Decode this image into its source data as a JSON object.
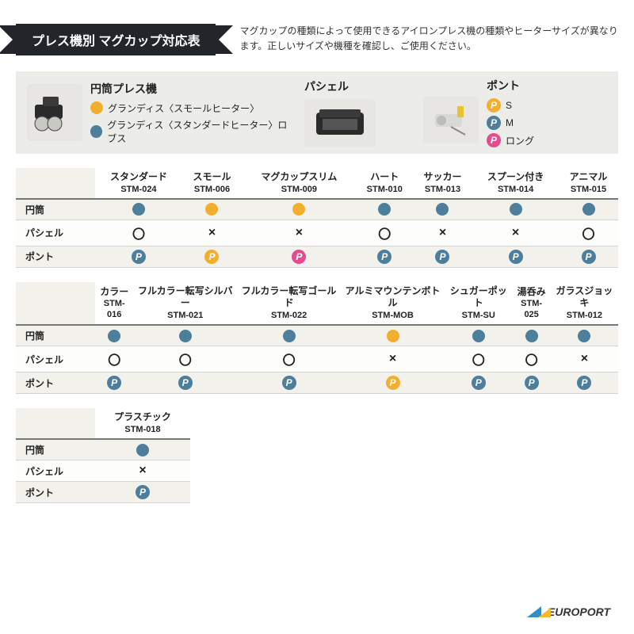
{
  "colors": {
    "blue": "#4d7e9c",
    "orange": "#f3ae2e",
    "pink": "#e84a8f",
    "dark": "#222529",
    "bg_gray": "#ecece9",
    "row_alt": "#f2f1ec",
    "grid": "#d4d3cf"
  },
  "header": {
    "title": "プレス機別 マグカップ対応表",
    "desc": "マグカップの種類によって使用できるアイロンプレス機の種類やヒーターサイズが異なります。正しいサイズや機種を確認し、ご使用ください。"
  },
  "legend": {
    "col1": {
      "title": "円筒プレス機",
      "items": [
        {
          "color": "#f3ae2e",
          "label": "グランディス〈スモールヒーター〉"
        },
        {
          "color": "#4d7e9c",
          "label": "グランディス〈スタンダードヒーター〉ロブス"
        }
      ]
    },
    "col2": {
      "title": "パシェル"
    },
    "col3": {
      "title": "ポント",
      "items": [
        {
          "color": "#f3ae2e",
          "label": "S"
        },
        {
          "color": "#4d7e9c",
          "label": "M"
        },
        {
          "color": "#e84a8f",
          "label": "ロング"
        }
      ]
    }
  },
  "rowLabels": [
    "円筒",
    "パシェル",
    "ポント"
  ],
  "symbols": {
    "ok": "〇",
    "ng": "×",
    "p": "P"
  },
  "tables": [
    {
      "full": true,
      "cols": [
        {
          "name": "スタンダード",
          "code": "STM-024"
        },
        {
          "name": "スモール",
          "code": "STM-006"
        },
        {
          "name": "マグカップスリム",
          "code": "STM-009"
        },
        {
          "name": "ハート",
          "code": "STM-010"
        },
        {
          "name": "サッカー",
          "code": "STM-013"
        },
        {
          "name": "スプーン付き",
          "code": "STM-014"
        },
        {
          "name": "アニマル",
          "code": "STM-015"
        }
      ],
      "rows": [
        [
          {
            "t": "dot",
            "c": "#4d7e9c"
          },
          {
            "t": "dot",
            "c": "#f3ae2e"
          },
          {
            "t": "dot",
            "c": "#f3ae2e"
          },
          {
            "t": "dot",
            "c": "#4d7e9c"
          },
          {
            "t": "dot",
            "c": "#4d7e9c"
          },
          {
            "t": "dot",
            "c": "#4d7e9c"
          },
          {
            "t": "dot",
            "c": "#4d7e9c"
          }
        ],
        [
          {
            "t": "ok"
          },
          {
            "t": "ng"
          },
          {
            "t": "ng"
          },
          {
            "t": "ok"
          },
          {
            "t": "ng"
          },
          {
            "t": "ng"
          },
          {
            "t": "ok"
          }
        ],
        [
          {
            "t": "p",
            "c": "#4d7e9c"
          },
          {
            "t": "p",
            "c": "#f3ae2e"
          },
          {
            "t": "p",
            "c": "#e84a8f"
          },
          {
            "t": "p",
            "c": "#4d7e9c"
          },
          {
            "t": "p",
            "c": "#4d7e9c"
          },
          {
            "t": "p",
            "c": "#4d7e9c"
          },
          {
            "t": "p",
            "c": "#4d7e9c"
          }
        ]
      ]
    },
    {
      "full": true,
      "cols": [
        {
          "name": "カラー",
          "code": "STM-016"
        },
        {
          "name": "フルカラー転写シルバー",
          "code": "STM-021"
        },
        {
          "name": "フルカラー転写ゴールド",
          "code": "STM-022"
        },
        {
          "name": "アルミマウンテンボトル",
          "code": "STM-MOB"
        },
        {
          "name": "シュガーポット",
          "code": "STM-SU"
        },
        {
          "name": "湯呑み",
          "code": "STM-025"
        },
        {
          "name": "ガラスジョッキ",
          "code": "STM-012"
        }
      ],
      "rows": [
        [
          {
            "t": "dot",
            "c": "#4d7e9c"
          },
          {
            "t": "dot",
            "c": "#4d7e9c"
          },
          {
            "t": "dot",
            "c": "#4d7e9c"
          },
          {
            "t": "dot",
            "c": "#f3ae2e"
          },
          {
            "t": "dot",
            "c": "#4d7e9c"
          },
          {
            "t": "dot",
            "c": "#4d7e9c"
          },
          {
            "t": "dot",
            "c": "#4d7e9c"
          }
        ],
        [
          {
            "t": "ok"
          },
          {
            "t": "ok"
          },
          {
            "t": "ok"
          },
          {
            "t": "ng"
          },
          {
            "t": "ok"
          },
          {
            "t": "ok"
          },
          {
            "t": "ng"
          }
        ],
        [
          {
            "t": "p",
            "c": "#4d7e9c"
          },
          {
            "t": "p",
            "c": "#4d7e9c"
          },
          {
            "t": "p",
            "c": "#4d7e9c"
          },
          {
            "t": "p",
            "c": "#f3ae2e"
          },
          {
            "t": "p",
            "c": "#4d7e9c"
          },
          {
            "t": "p",
            "c": "#4d7e9c"
          },
          {
            "t": "p",
            "c": "#4d7e9c"
          }
        ]
      ]
    },
    {
      "full": false,
      "cols": [
        {
          "name": "プラスチック",
          "code": "STM-018"
        }
      ],
      "rows": [
        [
          {
            "t": "dot",
            "c": "#4d7e9c"
          }
        ],
        [
          {
            "t": "ng"
          }
        ],
        [
          {
            "t": "p",
            "c": "#4d7e9c"
          }
        ]
      ]
    }
  ],
  "footer": {
    "brand": "EUROPORT"
  }
}
